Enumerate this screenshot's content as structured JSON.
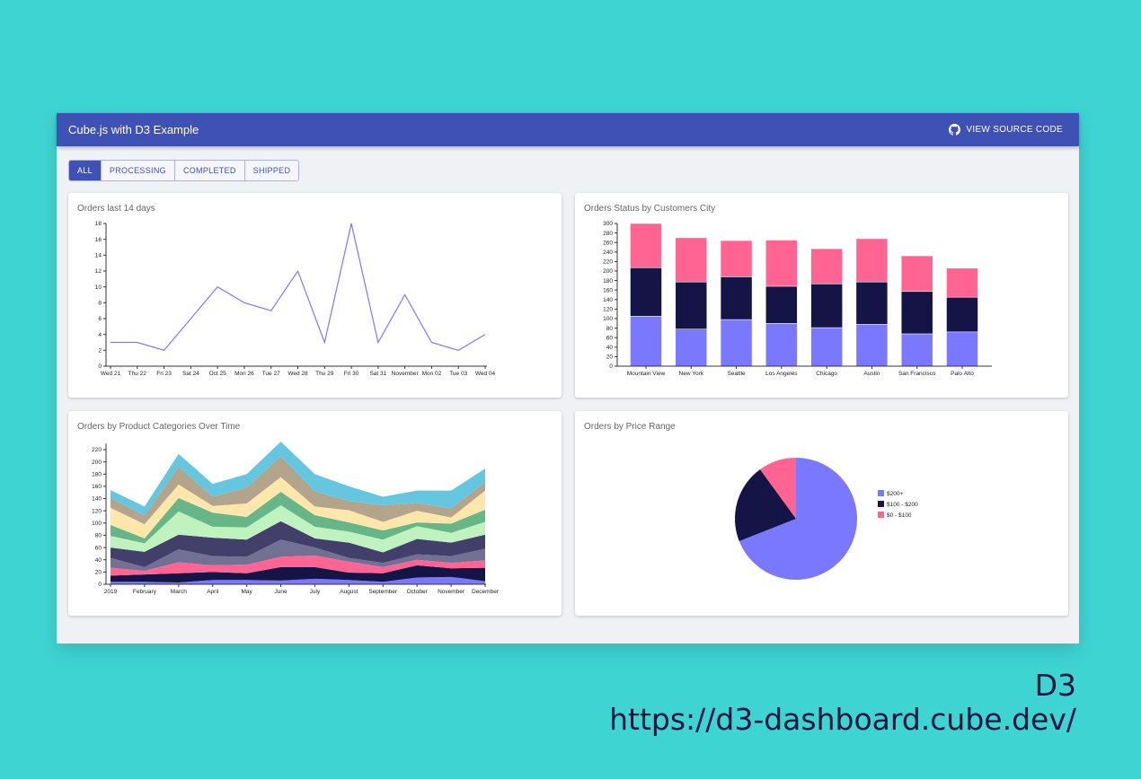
{
  "header": {
    "title": "Cube.js with D3 Example",
    "source_label": "VIEW SOURCE CODE",
    "source_icon": "github-icon"
  },
  "tabs": [
    {
      "label": "ALL",
      "active": true
    },
    {
      "label": "PROCESSING"
    },
    {
      "label": "COMPLETED"
    },
    {
      "label": "SHIPPED"
    }
  ],
  "colors": {
    "header": "#3f51b5",
    "background": "#3dd4d2",
    "line": "#7a78ff"
  },
  "footer": {
    "title": "D3",
    "url": "https://d3-dashboard.cube.dev/"
  },
  "chart_data": [
    {
      "type": "line",
      "title": "Orders last 14 days",
      "categories": [
        "Wed 21",
        "Thu 22",
        "Fri 23",
        "Sat 24",
        "Oct 25",
        "Mon 26",
        "Tue 27",
        "Wed 28",
        "Thu 29",
        "Fri 30",
        "Sat 31",
        "November",
        "Mon 02",
        "Tue 03",
        "Wed 04"
      ],
      "values": [
        3,
        3,
        2,
        6,
        10,
        8,
        7,
        12,
        3,
        18,
        3,
        9,
        3,
        2,
        4
      ],
      "ylim": [
        0,
        18
      ],
      "yticks": [
        0,
        2,
        4,
        6,
        8,
        10,
        12,
        14,
        16,
        18
      ],
      "color": "#7a78ff"
    },
    {
      "type": "bar",
      "stacked": true,
      "title": "Orders Status by Customers City",
      "categories": [
        "Mountain View",
        "New York",
        "Seattle",
        "Los Angeles",
        "Chicago",
        "Austin",
        "San Francisco",
        "Palo Alto"
      ],
      "series": [
        {
          "values": [
            105,
            78,
            98,
            90,
            81,
            88,
            68,
            72
          ],
          "color": "#7a78ff"
        },
        {
          "values": [
            102,
            99,
            90,
            78,
            92,
            89,
            89,
            73
          ],
          "color": "#141446"
        },
        {
          "values": [
            93,
            93,
            76,
            97,
            74,
            91,
            75,
            61
          ],
          "color": "#ff6492"
        }
      ],
      "ylim": [
        0,
        300
      ],
      "yticks": [
        0,
        20,
        40,
        60,
        80,
        100,
        120,
        140,
        160,
        180,
        200,
        220,
        240,
        260,
        280,
        300
      ]
    },
    {
      "type": "area",
      "stacked": true,
      "title": "Orders by Product Categories Over Time",
      "categories": [
        "2019",
        "February",
        "March",
        "April",
        "May",
        "June",
        "July",
        "August",
        "September",
        "October",
        "November",
        "December"
      ],
      "series": [
        {
          "values": [
            4,
            4,
            3,
            7,
            7,
            6,
            9,
            7,
            4,
            11,
            12,
            5
          ],
          "color": "#7a78ff"
        },
        {
          "values": [
            10,
            12,
            15,
            13,
            11,
            22,
            19,
            12,
            14,
            20,
            14,
            22
          ],
          "color": "#141446"
        },
        {
          "values": [
            13,
            6,
            18,
            11,
            14,
            17,
            19,
            18,
            10,
            9,
            9,
            12
          ],
          "color": "#ff6492"
        },
        {
          "values": [
            16,
            6,
            21,
            15,
            13,
            28,
            13,
            6,
            7,
            9,
            11,
            19
          ],
          "color": "#727194"
        },
        {
          "values": [
            17,
            25,
            24,
            30,
            28,
            30,
            15,
            25,
            17,
            25,
            22,
            23
          ],
          "color": "#433f6b"
        },
        {
          "values": [
            19,
            14,
            38,
            18,
            20,
            26,
            19,
            18,
            21,
            21,
            16,
            21
          ],
          "color": "#c0f2c0"
        },
        {
          "values": [
            18,
            8,
            22,
            23,
            17,
            22,
            19,
            15,
            15,
            6,
            15,
            20
          ],
          "color": "#66b688"
        },
        {
          "values": [
            28,
            23,
            22,
            11,
            22,
            24,
            14,
            20,
            14,
            19,
            10,
            31
          ],
          "color": "#ffe6aa"
        },
        {
          "values": [
            16,
            14,
            29,
            15,
            26,
            34,
            25,
            15,
            27,
            13,
            15,
            14
          ],
          "color": "#b2a58b"
        },
        {
          "values": [
            13,
            15,
            21,
            21,
            22,
            24,
            28,
            24,
            14,
            20,
            29,
            22
          ],
          "color": "#64c6df"
        }
      ],
      "ylim": [
        0,
        230
      ],
      "yticks": [
        0,
        20,
        40,
        60,
        80,
        100,
        120,
        140,
        160,
        180,
        200,
        220
      ]
    },
    {
      "type": "pie",
      "title": "Orders by Price Range",
      "slices": [
        {
          "label": "$200+",
          "value": 69,
          "color": "#7a78ff"
        },
        {
          "label": "$100 - $200",
          "value": 21,
          "color": "#141446"
        },
        {
          "label": "$0 - $100",
          "value": 10,
          "color": "#ff6492"
        }
      ],
      "legend": "right"
    }
  ]
}
